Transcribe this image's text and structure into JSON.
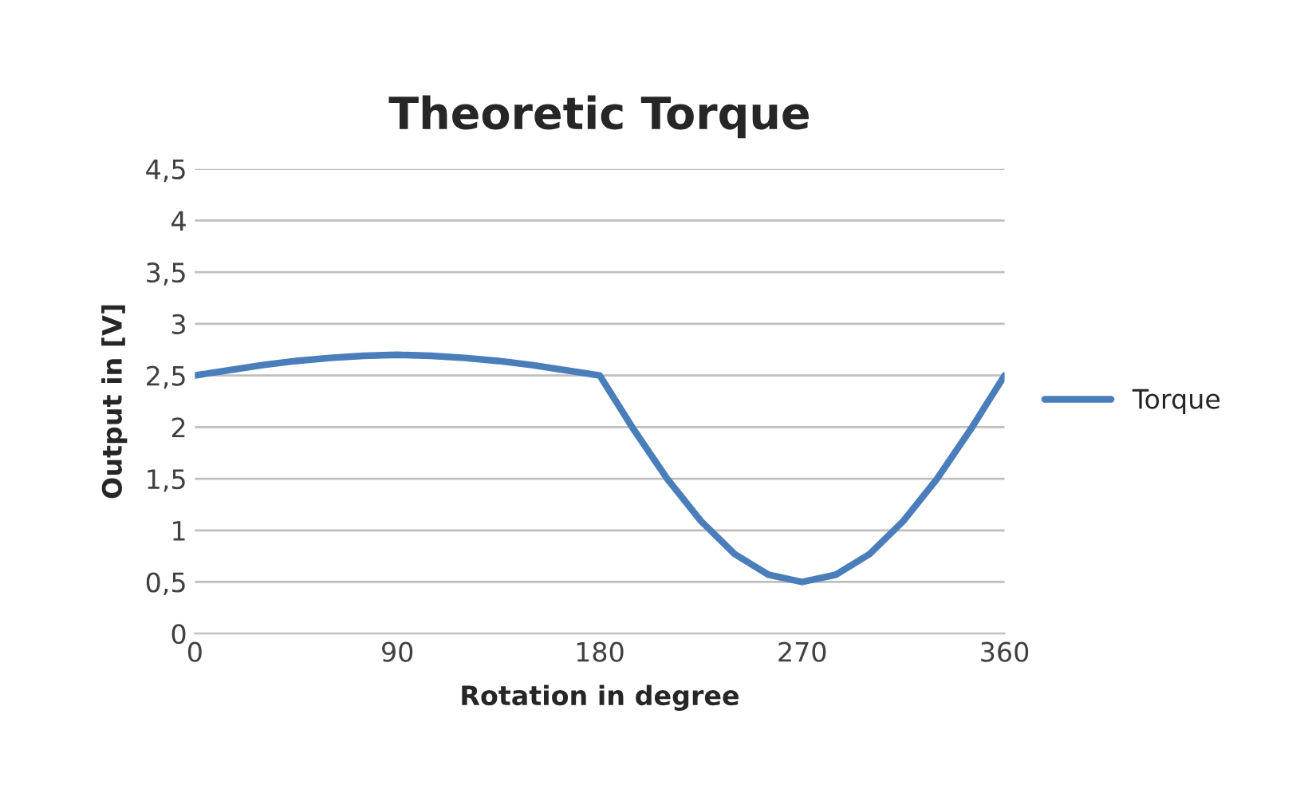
{
  "chart_data": {
    "type": "line",
    "title": "Theoretic Torque",
    "xlabel": "Rotation in degree",
    "ylabel": "Output in [V]",
    "x": [
      0,
      15,
      30,
      45,
      60,
      75,
      90,
      105,
      120,
      135,
      150,
      165,
      180,
      195,
      210,
      225,
      240,
      255,
      270,
      285,
      300,
      315,
      330,
      345,
      360
    ],
    "series": [
      {
        "name": "Torque",
        "color": "#4a7ebb",
        "values": [
          2.5,
          2.55,
          2.6,
          2.64,
          2.67,
          2.69,
          2.7,
          2.69,
          2.67,
          2.64,
          2.6,
          2.55,
          2.5,
          1.98,
          1.5,
          1.09,
          0.77,
          0.57,
          0.5,
          0.57,
          0.77,
          1.09,
          1.5,
          1.98,
          2.5
        ]
      }
    ],
    "xlim": [
      0,
      360
    ],
    "xticks": [
      0,
      90,
      180,
      270,
      360
    ],
    "ylim": [
      0,
      4.5
    ],
    "yticks": [
      0,
      {
        "value": 0.5,
        "label": "0,5"
      },
      1,
      {
        "value": 1.5,
        "label": "1,5"
      },
      2,
      {
        "value": 2.5,
        "label": "2,5"
      },
      3,
      {
        "value": 3.5,
        "label": "3,5"
      },
      4,
      {
        "value": 4.5,
        "label": "4,5"
      }
    ],
    "grid": "y",
    "legend": "right",
    "marker": "none",
    "line_style": "solid"
  }
}
